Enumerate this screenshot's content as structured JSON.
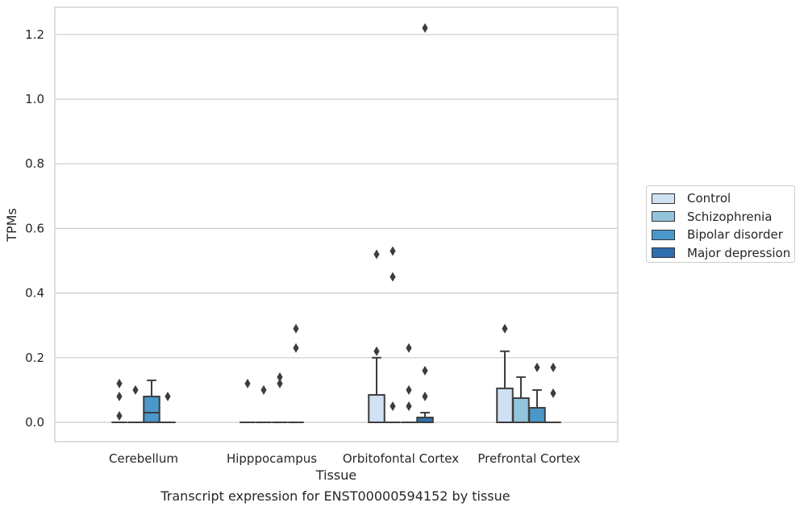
{
  "caption": "Transcript expression for ENST00000594152 by tissue",
  "chart_data": {
    "type": "box",
    "title": "",
    "xlabel": "Tissue",
    "ylabel": "TPMs",
    "ylim": [
      -0.06,
      1.28
    ],
    "yticks": [
      "0.0",
      "0.2",
      "0.4",
      "0.6",
      "0.8",
      "1.0",
      "1.2"
    ],
    "grid": "horizontal",
    "legend_position": "right",
    "categories": [
      "Cerebellum",
      "Hipppocampus",
      "Orbitofontal Cortex",
      "Prefrontal Cortex"
    ],
    "series": [
      {
        "name": "Control",
        "color": "#cfe1f2",
        "boxes": [
          {
            "q1": 0,
            "median": 0,
            "q3": 0,
            "whisker_low": 0,
            "whisker_high": 0,
            "outliers": [
              0.12,
              0.08,
              0.02
            ]
          },
          {
            "q1": 0,
            "median": 0,
            "q3": 0,
            "whisker_low": 0,
            "whisker_high": 0,
            "outliers": [
              0.12
            ]
          },
          {
            "q1": 0,
            "median": 0,
            "q3": 0.085,
            "whisker_low": 0,
            "whisker_high": 0.2,
            "outliers": [
              0.52,
              0.22
            ]
          },
          {
            "q1": 0,
            "median": 0,
            "q3": 0.105,
            "whisker_low": 0,
            "whisker_high": 0.22,
            "outliers": [
              0.29
            ]
          }
        ]
      },
      {
        "name": "Schizophrenia",
        "color": "#93c4de",
        "boxes": [
          {
            "q1": 0,
            "median": 0,
            "q3": 0,
            "whisker_low": 0,
            "whisker_high": 0,
            "outliers": [
              0.1
            ]
          },
          {
            "q1": 0,
            "median": 0,
            "q3": 0,
            "whisker_low": 0,
            "whisker_high": 0,
            "outliers": [
              0.1
            ]
          },
          {
            "q1": 0,
            "median": 0,
            "q3": 0,
            "whisker_low": 0,
            "whisker_high": 0,
            "outliers": [
              0.53,
              0.45,
              0.05
            ]
          },
          {
            "q1": 0,
            "median": 0,
            "q3": 0.075,
            "whisker_low": 0,
            "whisker_high": 0.14,
            "outliers": []
          }
        ]
      },
      {
        "name": "Bipolar disorder",
        "color": "#4a98c9",
        "boxes": [
          {
            "q1": 0,
            "median": 0.03,
            "q3": 0.08,
            "whisker_low": 0,
            "whisker_high": 0.13,
            "outliers": []
          },
          {
            "q1": 0,
            "median": 0,
            "q3": 0,
            "whisker_low": 0,
            "whisker_high": 0,
            "outliers": [
              0.14,
              0.12
            ]
          },
          {
            "q1": 0,
            "median": 0,
            "q3": 0,
            "whisker_low": 0,
            "whisker_high": 0,
            "outliers": [
              0.23,
              0.1,
              0.05
            ]
          },
          {
            "q1": 0,
            "median": 0,
            "q3": 0.045,
            "whisker_low": 0,
            "whisker_high": 0.1,
            "outliers": [
              0.17
            ]
          }
        ]
      },
      {
        "name": "Major depression",
        "color": "#2f6fae",
        "boxes": [
          {
            "q1": 0,
            "median": 0,
            "q3": 0,
            "whisker_low": 0,
            "whisker_high": 0,
            "outliers": [
              0.08
            ]
          },
          {
            "q1": 0,
            "median": 0,
            "q3": 0,
            "whisker_low": 0,
            "whisker_high": 0,
            "outliers": [
              0.29,
              0.23
            ]
          },
          {
            "q1": 0,
            "median": 0,
            "q3": 0.015,
            "whisker_low": 0,
            "whisker_high": 0.03,
            "outliers": [
              1.22,
              0.16,
              0.08
            ]
          },
          {
            "q1": 0,
            "median": 0,
            "q3": 0,
            "whisker_low": 0,
            "whisker_high": 0,
            "outliers": [
              0.17,
              0.09
            ]
          }
        ]
      }
    ]
  }
}
